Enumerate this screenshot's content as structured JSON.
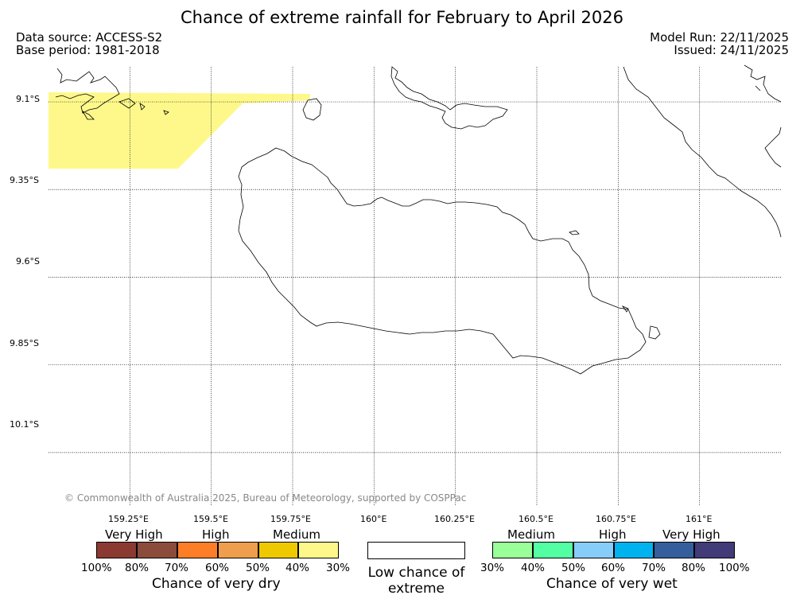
{
  "title": "Chance of extreme rainfall for February to April 2026",
  "meta": {
    "data_source": "Data source: ACCESS-S2",
    "base_period": "Base period: 1981-2018",
    "model_run": "Model Run: 22/11/2025",
    "issued": "Issued: 24/11/2025"
  },
  "map": {
    "lat_labels": [
      "9.1°S",
      "9.35°S",
      "9.6°S",
      "9.85°S",
      "10.1°S"
    ],
    "lon_labels": [
      "159.25°E",
      "159.5°E",
      "159.75°E",
      "160°E",
      "160.25°E",
      "160.5°E",
      "160.75°E",
      "161°E"
    ],
    "latitudes": [
      -9.1,
      -9.35,
      -9.6,
      -9.85,
      -10.1
    ],
    "longitudes": [
      159.25,
      159.5,
      159.75,
      160.0,
      160.25,
      160.5,
      160.75,
      161.0
    ],
    "extent": {
      "lon_min": 159.0,
      "lon_max": 161.25,
      "lat_max": -9.0,
      "lat_min": -10.25
    },
    "shaded_area": {
      "category": "Chance of very dry",
      "range": "30%-40%",
      "color": "#fef88b"
    },
    "copyright": "© Commonwealth of Australia 2025, Bureau of Meteorology, supported by COSPPac"
  },
  "legend": {
    "dry": {
      "categories": [
        "Very High",
        "High",
        "Medium"
      ],
      "colors": [
        "#8b3a32",
        "#8b4c3c",
        "#fe7e27",
        "#ee9e4c",
        "#eec900",
        "#fef88b"
      ],
      "ticks": [
        "100%",
        "80%",
        "70%",
        "60%",
        "50%",
        "40%",
        "30%"
      ],
      "caption": "Chance of very dry"
    },
    "low": {
      "caption": "Low chance of extreme",
      "color": "#ffffff"
    },
    "wet": {
      "categories": [
        "Medium",
        "High",
        "Very High"
      ],
      "colors": [
        "#9afe99",
        "#54fea2",
        "#87cdfa",
        "#00b2ee",
        "#355f9c",
        "#413b77"
      ],
      "ticks": [
        "30%",
        "40%",
        "50%",
        "60%",
        "70%",
        "80%",
        "100%"
      ],
      "caption": "Chance of very wet"
    }
  }
}
